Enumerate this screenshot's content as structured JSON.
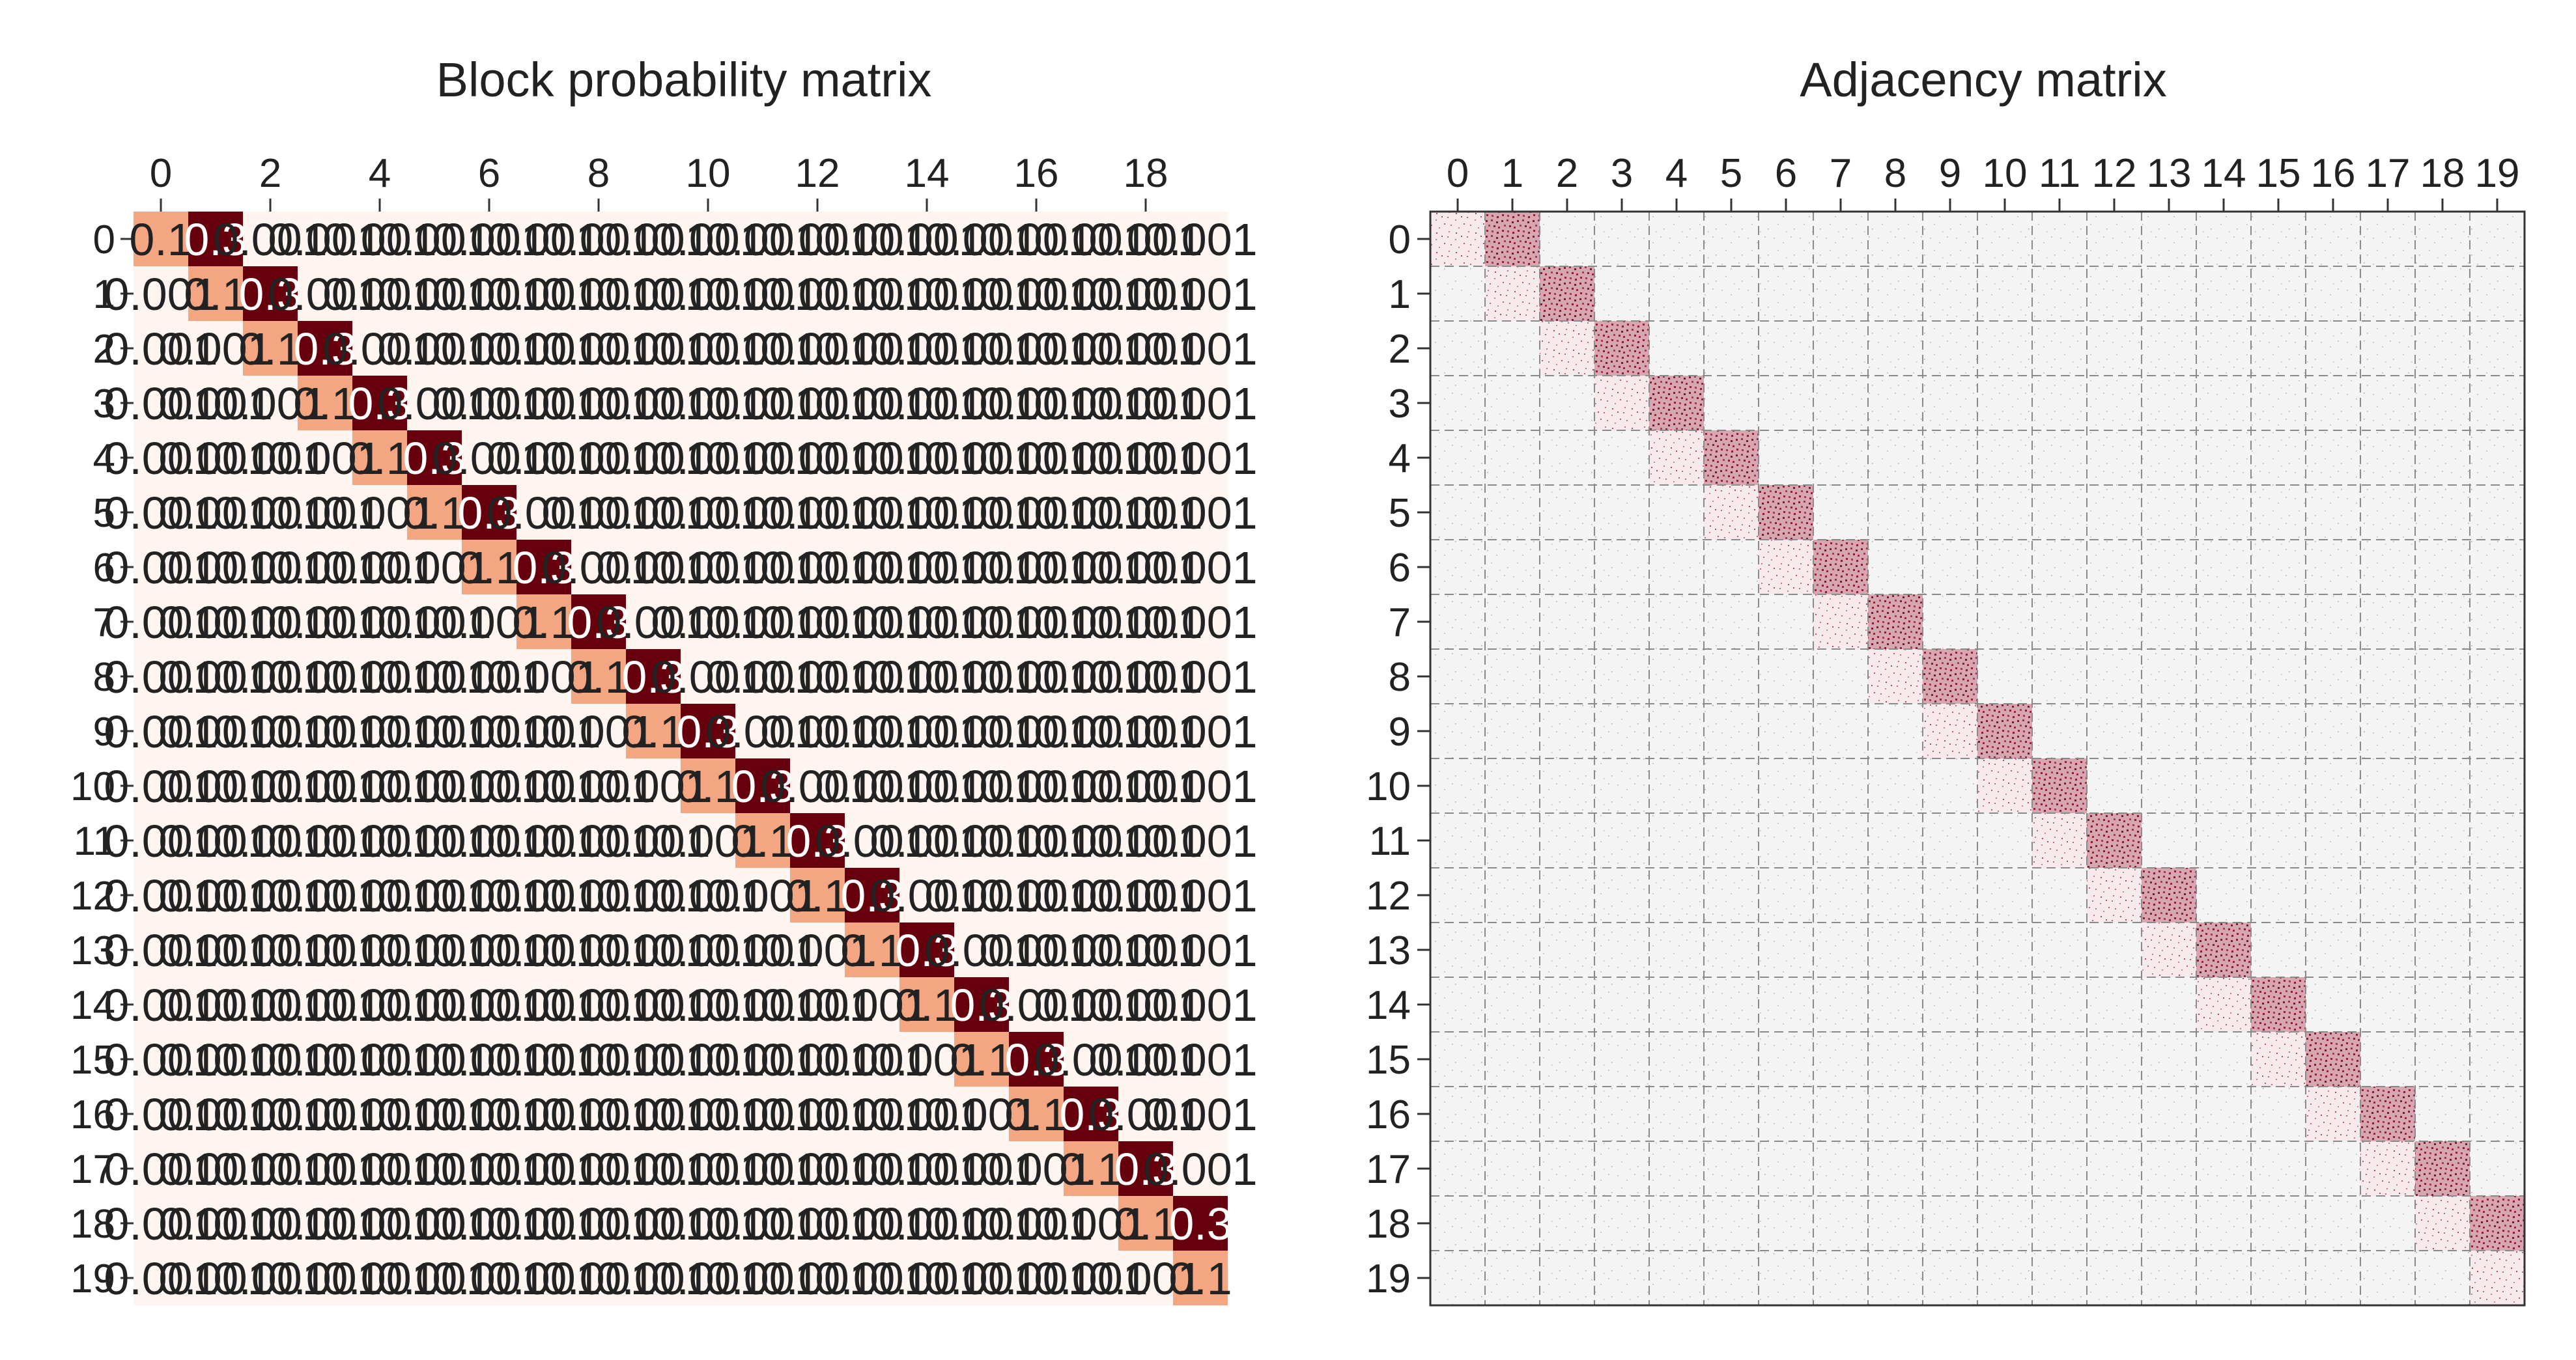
{
  "chart_data": [
    {
      "type": "heatmap",
      "title": "Block probability matrix",
      "n_blocks": 20,
      "x_tick_labels": [
        "0",
        "2",
        "4",
        "6",
        "8",
        "10",
        "12",
        "14",
        "16",
        "18"
      ],
      "y_tick_labels": [
        "0",
        "1",
        "2",
        "3",
        "4",
        "5",
        "6",
        "7",
        "8",
        "9",
        "10",
        "11",
        "12",
        "13",
        "14",
        "15",
        "16",
        "17",
        "18",
        "19"
      ],
      "diagonal_value": 0.1,
      "upper_offdiagonal_value": 0.3,
      "other_value": 0.001,
      "cell_label_diagonal": "0.1",
      "cell_label_upper": "0.3",
      "cell_label_other": "0.001",
      "colormap": {
        "low": "#fff5f0",
        "mid": "#f4a582",
        "high": "#67000d"
      }
    },
    {
      "type": "heatmap",
      "title": "Adjacency matrix",
      "n_blocks": 20,
      "x_tick_labels": [
        "0",
        "1",
        "2",
        "3",
        "4",
        "5",
        "6",
        "7",
        "8",
        "9",
        "10",
        "11",
        "12",
        "13",
        "14",
        "15",
        "16",
        "17",
        "18",
        "19"
      ],
      "y_tick_labels": [
        "0",
        "1",
        "2",
        "3",
        "4",
        "5",
        "6",
        "7",
        "8",
        "9",
        "10",
        "11",
        "12",
        "13",
        "14",
        "15",
        "16",
        "17",
        "18",
        "19"
      ],
      "block_edge_density": {
        "diagonal": 0.1,
        "upper_offdiagonal": 0.3,
        "other": 0.001
      },
      "grid": "dashed",
      "colors": {
        "edge": "#8b1a2e",
        "background": "#f4f4f4",
        "grid": "#8a8a8a"
      }
    }
  ]
}
